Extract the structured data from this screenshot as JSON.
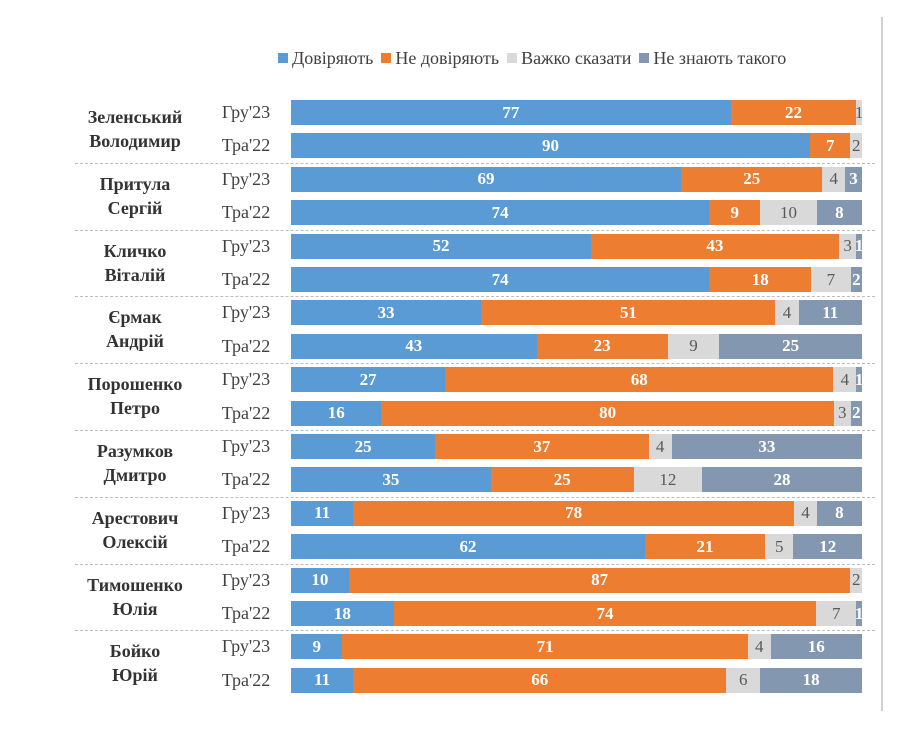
{
  "chart_data": {
    "type": "bar",
    "orientation": "horizontal",
    "stacked": true,
    "xlim": [
      0,
      100
    ],
    "legend_position": "top-right",
    "series": [
      {
        "name": "Довіряють",
        "color": "#5b9bd5"
      },
      {
        "name": "Не довіряють",
        "color": "#ed7d31"
      },
      {
        "name": "Важко сказати",
        "color": "#d9d9d9"
      },
      {
        "name": "Не знають такого",
        "color": "#8497b0"
      }
    ],
    "groups": [
      {
        "name": [
          "Зеленський",
          "Володимир"
        ],
        "rows": [
          {
            "period": "Гру'23",
            "values": [
              77,
              22,
              1,
              0
            ]
          },
          {
            "period": "Тра'22",
            "values": [
              90,
              7,
              2,
              0
            ]
          }
        ]
      },
      {
        "name": [
          "Притула",
          "Сергій"
        ],
        "rows": [
          {
            "period": "Гру'23",
            "values": [
              69,
              25,
              4,
              3
            ]
          },
          {
            "period": "Тра'22",
            "values": [
              74,
              9,
              10,
              8
            ]
          }
        ]
      },
      {
        "name": [
          "Кличко",
          "Віталій"
        ],
        "rows": [
          {
            "period": "Гру'23",
            "values": [
              52,
              43,
              3,
              1
            ]
          },
          {
            "period": "Тра'22",
            "values": [
              74,
              18,
              7,
              2
            ]
          }
        ]
      },
      {
        "name": [
          "Єрмак",
          "Андрій"
        ],
        "rows": [
          {
            "period": "Гру'23",
            "values": [
              33,
              51,
              4,
              11
            ]
          },
          {
            "period": "Тра'22",
            "values": [
              43,
              23,
              9,
              25
            ]
          }
        ]
      },
      {
        "name": [
          "Порошенко",
          "Петро"
        ],
        "rows": [
          {
            "period": "Гру'23",
            "values": [
              27,
              68,
              4,
              1
            ]
          },
          {
            "period": "Тра'22",
            "values": [
              16,
              80,
              3,
              2
            ]
          }
        ]
      },
      {
        "name": [
          "Разумков",
          "Дмитро"
        ],
        "rows": [
          {
            "period": "Гру'23",
            "values": [
              25,
              37,
              4,
              33
            ]
          },
          {
            "period": "Тра'22",
            "values": [
              35,
              25,
              12,
              28
            ]
          }
        ]
      },
      {
        "name": [
          "Арестович",
          "Олексій"
        ],
        "rows": [
          {
            "period": "Гру'23",
            "values": [
              11,
              78,
              4,
              8
            ]
          },
          {
            "period": "Тра'22",
            "values": [
              62,
              21,
              5,
              12
            ]
          }
        ]
      },
      {
        "name": [
          "Тимошенко",
          "Юлія"
        ],
        "rows": [
          {
            "period": "Гру'23",
            "values": [
              10,
              87,
              2,
              0
            ]
          },
          {
            "period": "Тра'22",
            "values": [
              18,
              74,
              7,
              1
            ]
          }
        ]
      },
      {
        "name": [
          "Бойко",
          "Юрій"
        ],
        "rows": [
          {
            "period": "Гру'23",
            "values": [
              9,
              71,
              4,
              16
            ]
          },
          {
            "period": "Тра'22",
            "values": [
              11,
              66,
              6,
              18
            ]
          }
        ]
      }
    ]
  }
}
